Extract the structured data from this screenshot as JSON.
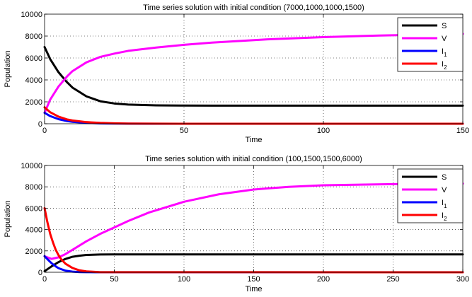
{
  "chart_data": [
    {
      "type": "line",
      "title": "Time series solution with initial condition (7000,1000,1000,1500)",
      "xlabel": "Time",
      "ylabel": "Population",
      "xlim": [
        0,
        150
      ],
      "ylim": [
        0,
        10000
      ],
      "xticks": [
        0,
        50,
        100,
        150
      ],
      "yticks": [
        0,
        2000,
        4000,
        6000,
        8000,
        10000
      ],
      "grid": true,
      "legend_position": "top-right",
      "series": [
        {
          "name": "S",
          "sub": "",
          "color": "#000000",
          "x": [
            0,
            2,
            5,
            8,
            10,
            15,
            20,
            25,
            30,
            40,
            50,
            60,
            80,
            100,
            120,
            150
          ],
          "y": [
            7000,
            5900,
            4700,
            3800,
            3300,
            2500,
            2050,
            1850,
            1750,
            1680,
            1660,
            1650,
            1650,
            1650,
            1650,
            1650
          ]
        },
        {
          "name": "V",
          "sub": "",
          "color": "#ff00ff",
          "x": [
            0,
            2,
            5,
            8,
            10,
            15,
            20,
            25,
            30,
            40,
            50,
            60,
            80,
            100,
            120,
            150
          ],
          "y": [
            1000,
            2200,
            3400,
            4300,
            4800,
            5600,
            6100,
            6400,
            6650,
            6950,
            7200,
            7400,
            7700,
            7900,
            8050,
            8200
          ]
        },
        {
          "name": "I",
          "sub": "1",
          "color": "#0000ff",
          "x": [
            0,
            2,
            5,
            8,
            10,
            15,
            20,
            25,
            30,
            40,
            50,
            150
          ],
          "y": [
            1000,
            700,
            420,
            250,
            180,
            80,
            35,
            15,
            8,
            3,
            0,
            0
          ]
        },
        {
          "name": "I",
          "sub": "2",
          "color": "#ff0000",
          "x": [
            0,
            2,
            5,
            8,
            10,
            15,
            20,
            25,
            30,
            40,
            50,
            150
          ],
          "y": [
            1500,
            1050,
            650,
            400,
            300,
            150,
            80,
            40,
            20,
            5,
            0,
            0
          ]
        }
      ]
    },
    {
      "type": "line",
      "title": "Time series solution with initial condition (100,1500,1500,6000)",
      "xlabel": "Time",
      "ylabel": "Population",
      "xlim": [
        0,
        300
      ],
      "ylim": [
        0,
        10000
      ],
      "xticks": [
        0,
        50,
        100,
        150,
        200,
        250,
        300
      ],
      "yticks": [
        0,
        2000,
        4000,
        6000,
        8000,
        10000
      ],
      "grid": true,
      "legend_position": "top-right",
      "series": [
        {
          "name": "S",
          "sub": "",
          "color": "#000000",
          "x": [
            0,
            5,
            10,
            15,
            20,
            25,
            30,
            40,
            50,
            75,
            100,
            150,
            200,
            250,
            300
          ],
          "y": [
            100,
            550,
            950,
            1250,
            1450,
            1550,
            1620,
            1660,
            1670,
            1670,
            1670,
            1670,
            1670,
            1670,
            1670
          ]
        },
        {
          "name": "V",
          "sub": "",
          "color": "#ff00ff",
          "x": [
            0,
            5,
            10,
            15,
            20,
            30,
            40,
            50,
            60,
            75,
            100,
            125,
            150,
            175,
            200,
            250,
            300
          ],
          "y": [
            1500,
            1250,
            1400,
            1700,
            2100,
            2900,
            3600,
            4200,
            4800,
            5600,
            6600,
            7300,
            7750,
            8000,
            8150,
            8250,
            8300
          ]
        },
        {
          "name": "I",
          "sub": "1",
          "color": "#0000ff",
          "x": [
            0,
            3,
            5,
            8,
            10,
            15,
            20,
            25,
            30,
            40,
            300
          ],
          "y": [
            1500,
            1100,
            850,
            550,
            380,
            150,
            60,
            20,
            8,
            0,
            0
          ]
        },
        {
          "name": "I",
          "sub": "2",
          "color": "#ff0000",
          "x": [
            0,
            2,
            4,
            6,
            8,
            10,
            12,
            15,
            20,
            25,
            30,
            40,
            300
          ],
          "y": [
            6000,
            4700,
            3600,
            2800,
            2100,
            1600,
            1200,
            800,
            400,
            180,
            80,
            10,
            0
          ]
        }
      ]
    }
  ]
}
